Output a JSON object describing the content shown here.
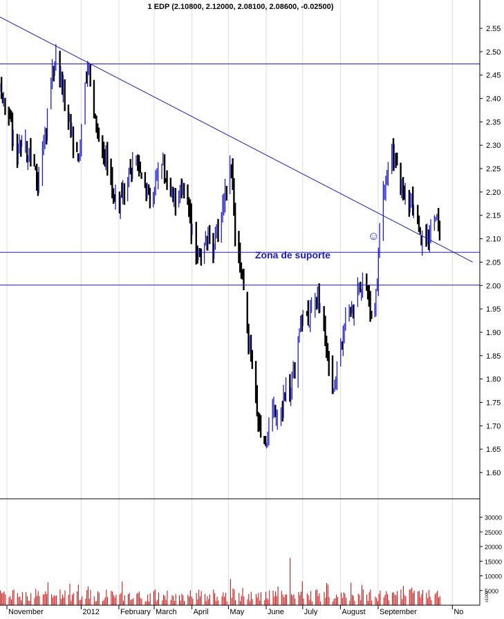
{
  "chart_data": {
    "type": "ohlc",
    "title": "1 EDP (2.10800, 2.12000, 2.08100, 2.08600, -0.02500)",
    "colors": {
      "up": "#1a1acc",
      "down": "#000000",
      "lines": "#1a1acc",
      "grid": "#dddddd",
      "volume": "#cc0000",
      "annotation": "#1a1acc"
    },
    "price_axis": {
      "ylim": [
        1.54,
        2.59
      ],
      "ticks": [
        "2.55",
        "2.50",
        "2.45",
        "2.40",
        "2.35",
        "2.30",
        "2.25",
        "2.20",
        "2.15",
        "2.10",
        "2.05",
        "2.00",
        "1.95",
        "1.90",
        "1.85",
        "1.80",
        "1.75",
        "1.70",
        "1.65",
        "1.60"
      ]
    },
    "volume_axis": {
      "ylim": [
        0,
        33000
      ],
      "ticks": [
        "30000",
        "25000",
        "20000",
        "15000",
        "10000",
        "5000"
      ],
      "scale_label": "x1000"
    },
    "x_axis": {
      "range_days": [
        0,
        380
      ],
      "months": [
        {
          "label": "November",
          "day": 0
        },
        {
          "label": "2012",
          "day": 61
        },
        {
          "label": "February",
          "day": 92
        },
        {
          "label": "March",
          "day": 121
        },
        {
          "label": "April",
          "day": 152
        },
        {
          "label": "May",
          "day": 182
        },
        {
          "label": "June",
          "day": 213
        },
        {
          "label": "July",
          "day": 243
        },
        {
          "label": "August",
          "day": 274
        },
        {
          "label": "September",
          "day": 305
        },
        {
          "label": "No",
          "day": 366
        }
      ]
    },
    "horizontal_lines": [
      2.474,
      2.071,
      2.001
    ],
    "trendline": {
      "from": {
        "day": -8,
        "price": 2.575
      },
      "to": {
        "day": 381,
        "price": 2.05
      }
    },
    "annotations": {
      "support_zone_label": "Zona de suporte",
      "support_zone_label_price": 2.058,
      "smiley": "☺",
      "smiley_price": 2.107,
      "smiley_day": 298
    },
    "price_path": [
      [
        -8,
        2.42
      ],
      [
        0,
        2.38
      ],
      [
        6,
        2.27
      ],
      [
        12,
        2.3
      ],
      [
        18,
        2.27
      ],
      [
        24,
        2.22
      ],
      [
        30,
        2.32
      ],
      [
        34,
        2.42
      ],
      [
        38,
        2.49
      ],
      [
        42,
        2.45
      ],
      [
        46,
        2.4
      ],
      [
        50,
        2.35
      ],
      [
        54,
        2.3
      ],
      [
        58,
        2.28
      ],
      [
        62,
        2.4
      ],
      [
        66,
        2.46
      ],
      [
        70,
        2.38
      ],
      [
        74,
        2.32
      ],
      [
        78,
        2.28
      ],
      [
        82,
        2.25
      ],
      [
        86,
        2.2
      ],
      [
        92,
        2.18
      ],
      [
        98,
        2.22
      ],
      [
        104,
        2.26
      ],
      [
        110,
        2.24
      ],
      [
        116,
        2.18
      ],
      [
        120,
        2.2
      ],
      [
        124,
        2.28
      ],
      [
        130,
        2.22
      ],
      [
        136,
        2.18
      ],
      [
        142,
        2.2
      ],
      [
        148,
        2.16
      ],
      [
        154,
        2.07
      ],
      [
        160,
        2.08
      ],
      [
        164,
        2.1
      ],
      [
        168,
        2.08
      ],
      [
        172,
        2.12
      ],
      [
        178,
        2.2
      ],
      [
        182,
        2.27
      ],
      [
        186,
        2.12
      ],
      [
        190,
        2.04
      ],
      [
        194,
        1.96
      ],
      [
        198,
        1.87
      ],
      [
        202,
        1.78
      ],
      [
        206,
        1.7
      ],
      [
        210,
        1.66
      ],
      [
        214,
        1.7
      ],
      [
        218,
        1.74
      ],
      [
        222,
        1.73
      ],
      [
        228,
        1.77
      ],
      [
        234,
        1.8
      ],
      [
        238,
        1.88
      ],
      [
        242,
        1.95
      ],
      [
        248,
        1.93
      ],
      [
        254,
        1.97
      ],
      [
        258,
        1.95
      ],
      [
        262,
        1.83
      ],
      [
        266,
        1.77
      ],
      [
        270,
        1.82
      ],
      [
        274,
        1.87
      ],
      [
        278,
        1.98
      ],
      [
        282,
        1.95
      ],
      [
        286,
        1.97
      ],
      [
        290,
        2.0
      ],
      [
        294,
        1.98
      ],
      [
        298,
        1.94
      ],
      [
        302,
        1.97
      ],
      [
        306,
        2.16
      ],
      [
        310,
        2.22
      ],
      [
        314,
        2.28
      ],
      [
        318,
        2.26
      ],
      [
        322,
        2.22
      ],
      [
        326,
        2.2
      ],
      [
        330,
        2.18
      ],
      [
        334,
        2.14
      ],
      [
        338,
        2.1
      ],
      [
        342,
        2.08
      ],
      [
        346,
        2.12
      ],
      [
        350,
        2.16
      ],
      [
        354,
        2.12
      ],
      [
        356,
        2.09
      ]
    ]
  }
}
